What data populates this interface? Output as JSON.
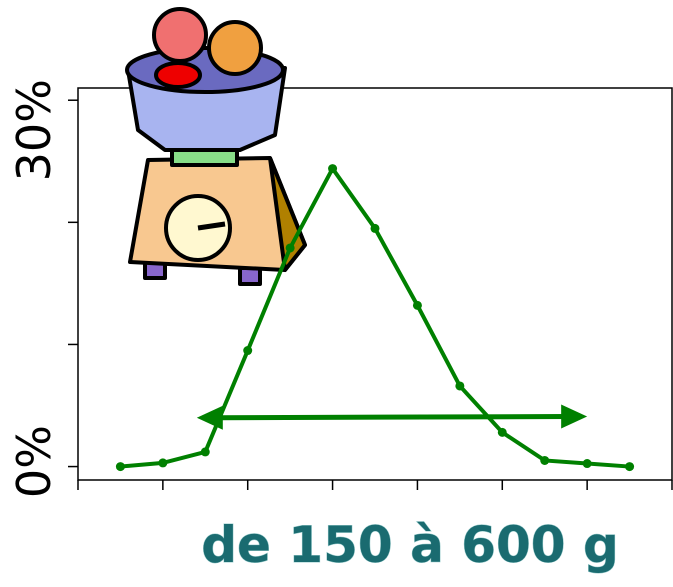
{
  "chart_data": {
    "type": "line",
    "xlabel": "de 150 à 600 g",
    "x": [
      1,
      2,
      3,
      4,
      5,
      6,
      7,
      8,
      9,
      10,
      11,
      12,
      13
    ],
    "series": [
      {
        "color": "#008000",
        "values": [
          0,
          0.3,
          1.2,
          9.5,
          17.9,
          24.4,
          19.5,
          13.2,
          6.6,
          2.8,
          0.5,
          0.25,
          0
        ]
      }
    ],
    "xlim": [
      0,
      14
    ],
    "ylim": [
      -1.1,
      31
    ],
    "yticks": [
      {
        "value": 0,
        "label": "0%"
      },
      {
        "value": 30,
        "label": "30%"
      }
    ],
    "yminor": [
      10,
      20
    ],
    "xminor": [
      0,
      2,
      4,
      6,
      8,
      10,
      12,
      14
    ],
    "range_arrow": {
      "x": [
        2.8,
        12.0
      ],
      "y": [
        4.0,
        4.1
      ]
    }
  }
}
